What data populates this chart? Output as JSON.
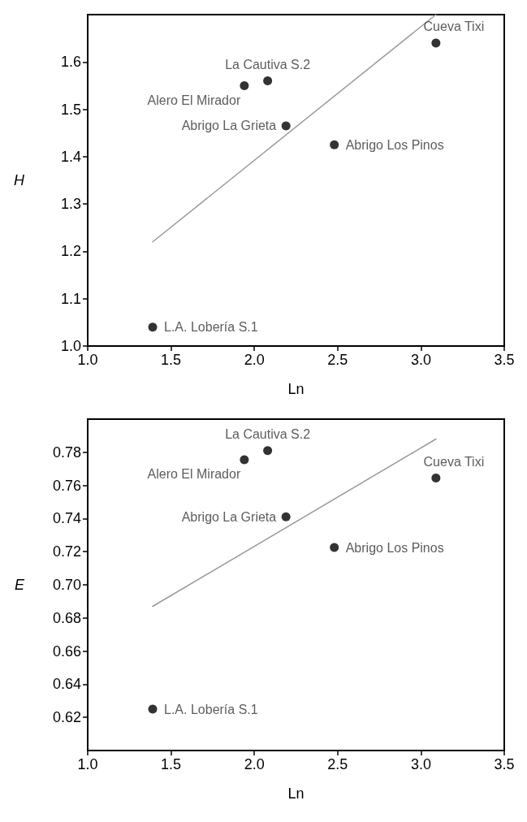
{
  "chart_data": [
    {
      "type": "scatter",
      "xlabel": "Ln",
      "ylabel": "H",
      "xlim": [
        1.0,
        3.5
      ],
      "ylim": [
        1.0,
        1.7
      ],
      "xticks": [
        {
          "value": 1,
          "label": "1.0"
        },
        {
          "value": 1.5,
          "label": "1.5"
        },
        {
          "value": 2,
          "label": "2.0"
        },
        {
          "value": 2.5,
          "label": "2.5"
        },
        {
          "value": 3,
          "label": "3.0"
        },
        {
          "value": 3.5,
          "label": "3.5"
        }
      ],
      "yticks": [
        {
          "value": 1,
          "label": "1.0"
        },
        1.1,
        1.2,
        1.3,
        1.4,
        1.5,
        1.6
      ],
      "grid": false,
      "series": [
        {
          "marker": "circle",
          "color": "#000000",
          "x": [
            1.39,
            1.94,
            2.08,
            2.19,
            2.48,
            3.09
          ],
          "values": [
            1.04,
            1.55,
            1.56,
            1.465,
            1.425,
            1.64
          ]
        },
        {
          "type": "line",
          "marker": "none",
          "color": "#999999",
          "x": [
            1.39,
            3.09
          ],
          "values": [
            1.22,
            1.7
          ]
        }
      ],
      "annotations": [
        {
          "text": "L.A. Lobería S.1",
          "x": 1.39,
          "y": 1.04
        },
        {
          "text": "Alero El Mirador",
          "x": 1.94,
          "y": 1.55
        },
        {
          "text": "La Cautiva S.2",
          "x": 2.08,
          "y": 1.56
        },
        {
          "text": "Abrigo La Grieta",
          "x": 2.19,
          "y": 1.465
        },
        {
          "text": "Abrigo Los Pinos",
          "x": 2.48,
          "y": 1.425
        },
        {
          "text": "Cueva Tixi",
          "x": 3.09,
          "y": 1.64
        }
      ]
    },
    {
      "type": "scatter",
      "xlabel": "Ln",
      "ylabel": "E",
      "xlim": [
        1.0,
        3.5
      ],
      "ylim": [
        0.6,
        0.8
      ],
      "xticks": [
        {
          "value": 1,
          "label": "1.0"
        },
        {
          "value": 1.5,
          "label": "1.5"
        },
        {
          "value": 2,
          "label": "2.0"
        },
        {
          "value": 2.5,
          "label": "2.5"
        },
        {
          "value": 3,
          "label": "3.0"
        },
        {
          "value": 3.5,
          "label": "3.5"
        }
      ],
      "yticks": [
        0.62,
        0.64,
        0.66,
        0.68,
        {
          "value": 0.7,
          "label": "0.70"
        },
        0.72,
        0.74,
        0.76,
        0.78
      ],
      "grid": false,
      "series": [
        {
          "marker": "circle",
          "color": "#000000",
          "x": [
            1.39,
            1.94,
            2.08,
            2.19,
            2.48,
            3.09
          ],
          "values": [
            0.625,
            0.7755,
            0.781,
            0.741,
            0.7225,
            0.7645
          ]
        },
        {
          "type": "line",
          "marker": "none",
          "color": "#999999",
          "x": [
            1.39,
            3.09
          ],
          "values": [
            0.687,
            0.788
          ]
        }
      ],
      "annotations": [
        {
          "text": "L.A. Lobería S.1",
          "x": 1.39,
          "y": 0.625
        },
        {
          "text": "Alero El Mirador",
          "x": 1.94,
          "y": 0.7755
        },
        {
          "text": "La Cautiva S.2",
          "x": 2.08,
          "y": 0.781
        },
        {
          "text": "Abrigo La Grieta",
          "x": 2.19,
          "y": 0.741
        },
        {
          "text": "Abrigo Los Pinos",
          "x": 2.48,
          "y": 0.7225
        },
        {
          "text": "Cueva Tixi",
          "x": 3.09,
          "y": 0.7645
        }
      ]
    }
  ]
}
